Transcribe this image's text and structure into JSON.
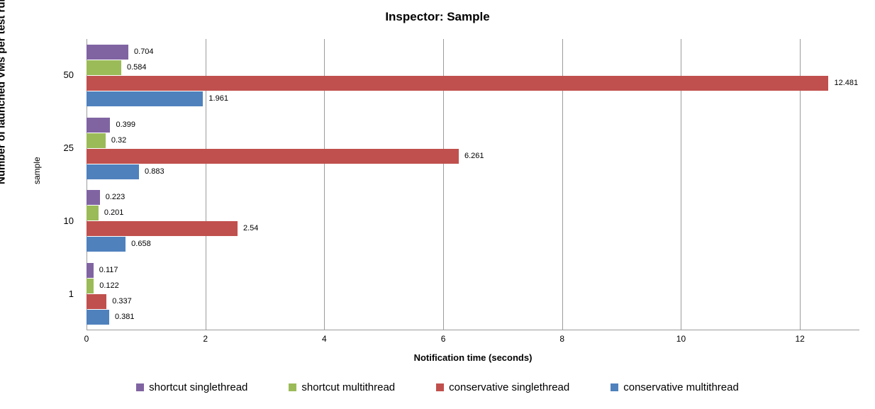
{
  "chart_data": {
    "type": "bar",
    "orientation": "horizontal",
    "title": "Inspector: Sample",
    "xlabel": "Notification time (seconds)",
    "ylabel_outer": "Number of launched VMs per test run",
    "ylabel_inner": "sample",
    "categories": [
      "50",
      "25",
      "10",
      "1"
    ],
    "series": [
      {
        "name": "shortcut singlethread",
        "color": "#8064A2",
        "values": [
          0.704,
          0.399,
          0.223,
          0.117
        ],
        "labels": [
          "0.704",
          "0.399",
          "0.223",
          "0.117"
        ]
      },
      {
        "name": "shortcut multithread",
        "color": "#9BBB59",
        "values": [
          0.584,
          0.32,
          0.201,
          0.122
        ],
        "labels": [
          "0.584",
          "0.32",
          "0.201",
          "0.122"
        ]
      },
      {
        "name": "conservative singlethread",
        "color": "#C0504D",
        "values": [
          12.481,
          6.261,
          2.54,
          0.337
        ],
        "labels": [
          "12.481",
          "6.261",
          "2.54",
          "0.337"
        ]
      },
      {
        "name": "conservative multithread",
        "color": "#4F81BD",
        "values": [
          1.961,
          0.883,
          0.658,
          0.381
        ],
        "labels": [
          "1.961",
          "0.883",
          "0.658",
          "0.381"
        ]
      }
    ],
    "xlim": [
      0,
      13
    ],
    "xticks": [
      0,
      2,
      4,
      6,
      8,
      10,
      12
    ],
    "grid": "vertical",
    "gridline_color": "#9c9c9c",
    "legend_position": "bottom"
  }
}
